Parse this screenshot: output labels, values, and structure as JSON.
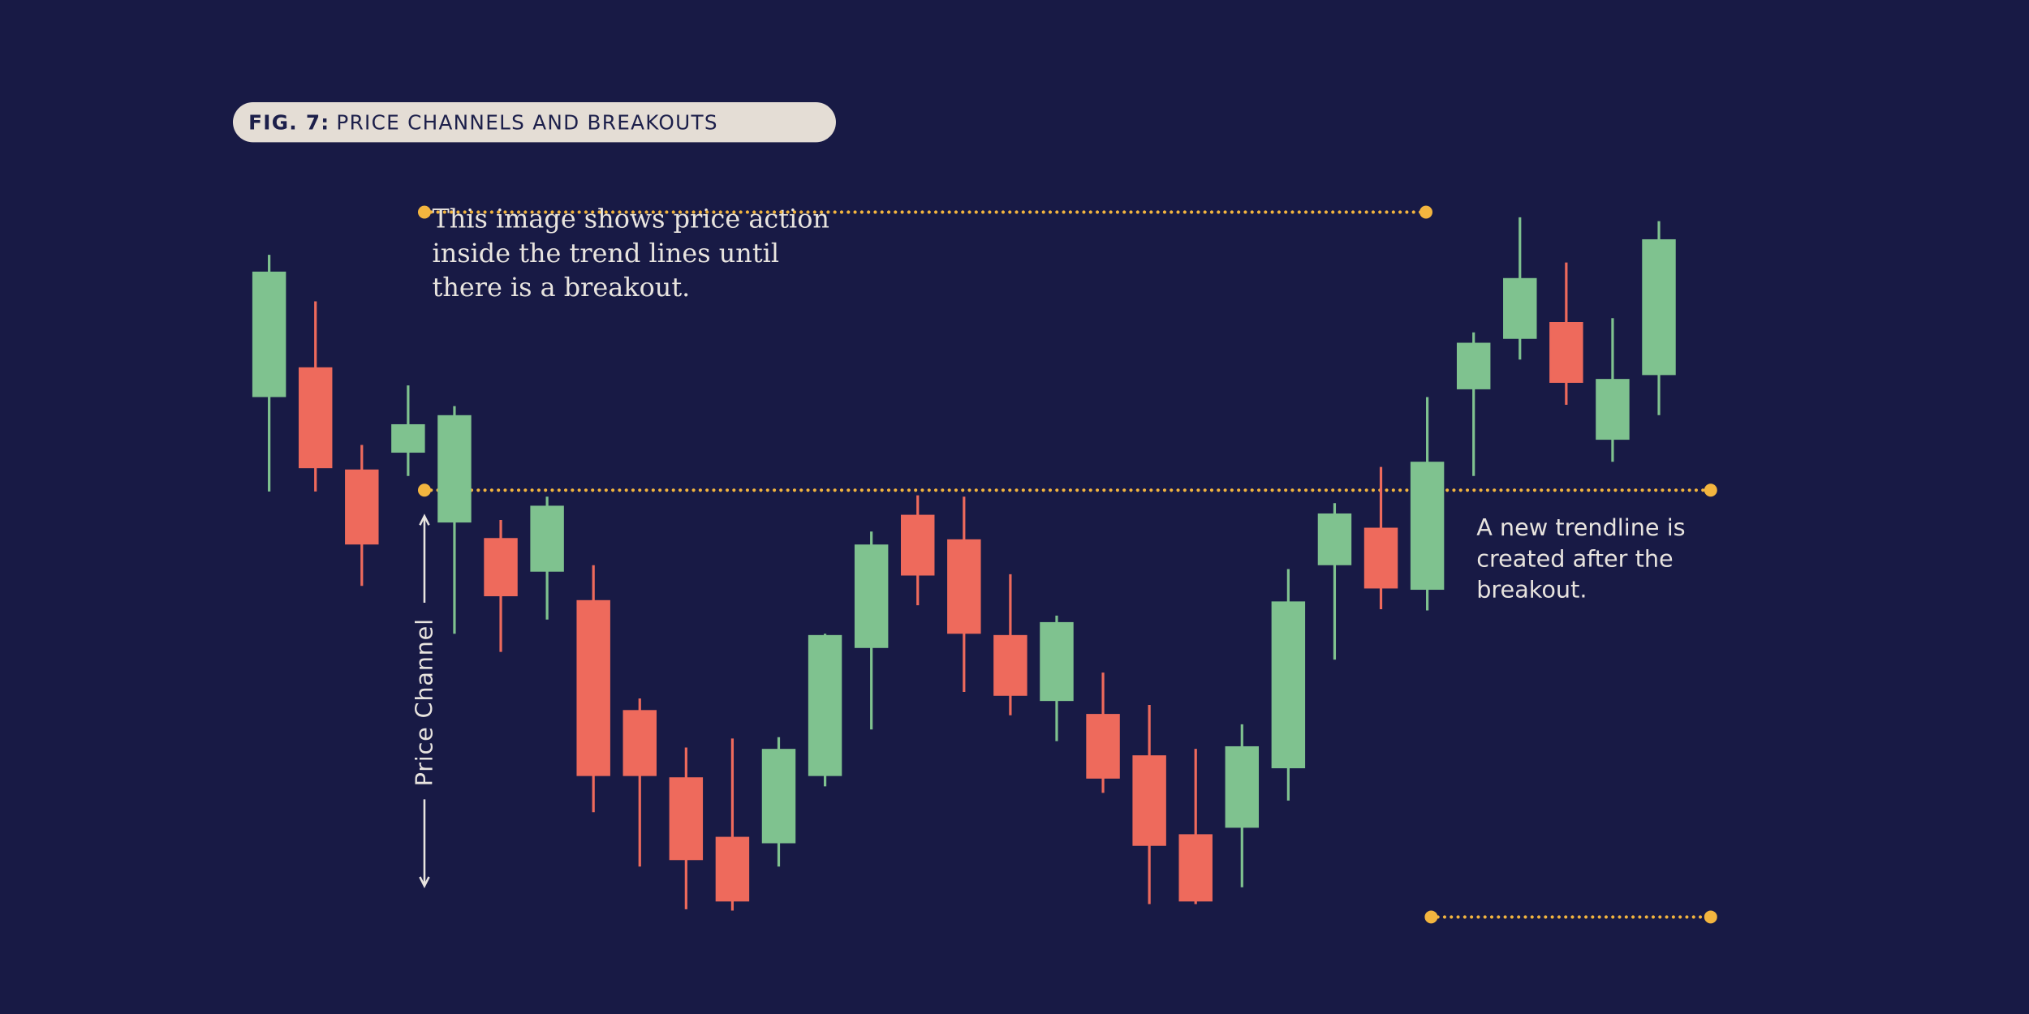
{
  "chart_data": {
    "type": "candlestick",
    "figure_label": "FIG. 7:",
    "title": "PRICE CHANNELS AND BREAKOUTS",
    "annotation_left": [
      "This image shows price action",
      "inside the trend lines until",
      "there is a breakout."
    ],
    "annotation_right": [
      "A new trendline is",
      "created after the",
      "breakout."
    ],
    "channel_label": "Price Channel",
    "ylim": [
      0,
      784
    ],
    "up_color": "#7fc28f",
    "down_color": "#ee6a5c",
    "level_color": "#f3b53f",
    "open": [
      477,
      500,
      421,
      434,
      380,
      368,
      342,
      320,
      235,
      183,
      137,
      132,
      184,
      283,
      386,
      367,
      293,
      242,
      232,
      200,
      139,
      144,
      190,
      347,
      376,
      328,
      483,
      522,
      535,
      444,
      494
    ],
    "close": [
      574,
      422,
      363,
      456,
      463,
      323,
      393,
      184,
      184,
      119,
      87,
      205,
      293,
      363,
      339,
      294,
      246,
      303,
      182,
      130,
      87,
      207,
      319,
      387,
      329,
      427,
      519,
      569,
      488,
      491,
      599
    ],
    "high": [
      587,
      551,
      440,
      486,
      470,
      382,
      400,
      347,
      244,
      206,
      213,
      214,
      294,
      373,
      401,
      400,
      340,
      308,
      264,
      239,
      205,
      224,
      344,
      395,
      423,
      477,
      527,
      616,
      581,
      538,
      613
    ],
    "low": [
      404,
      404,
      331,
      416,
      294,
      280,
      305,
      156,
      114,
      81,
      80,
      114,
      176,
      220,
      316,
      249,
      231,
      211,
      171,
      85,
      85,
      98,
      165,
      274,
      313,
      312,
      416,
      506,
      471,
      427,
      463
    ],
    "levels": [
      405,
      75,
      620
    ]
  }
}
